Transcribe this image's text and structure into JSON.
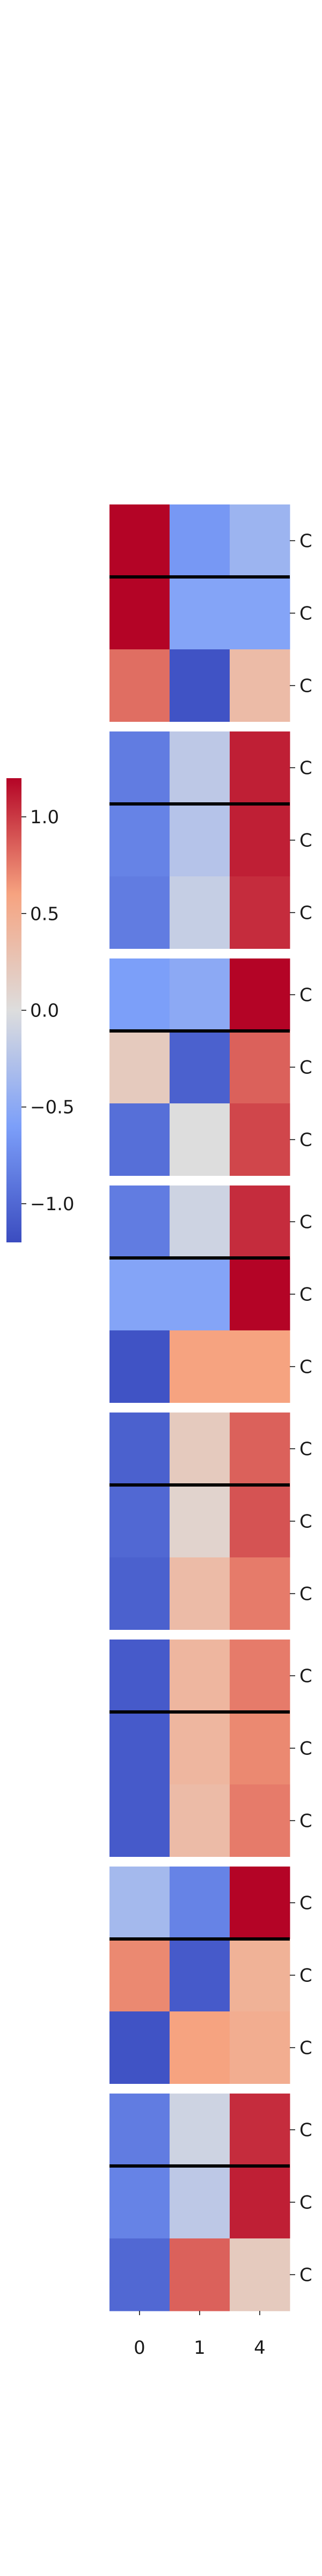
{
  "chart_data": {
    "type": "heatmap",
    "title": "",
    "xlabel": "",
    "ylabel": "",
    "x_categories": [
      "0",
      "1",
      "4"
    ],
    "colormap": "coolwarm",
    "color_range": [
      -1.2,
      1.2
    ],
    "colorbar": {
      "ticks": [
        1.0,
        0.5,
        0.0,
        -0.5,
        -1.0
      ],
      "tick_labels": [
        "1.0",
        "0.5",
        "0.0",
        "−0.5",
        "−1.0"
      ],
      "placement": "left"
    },
    "groups": [
      {
        "row_labels": [
          "C",
          "C",
          "C"
        ],
        "values": [
          [
            1.2,
            -0.65,
            -0.4
          ],
          [
            1.2,
            -0.55,
            -0.55
          ],
          [
            0.8,
            -1.15,
            0.35
          ]
        ]
      },
      {
        "row_labels": [
          "C",
          "C",
          "C"
        ],
        "values": [
          [
            -0.85,
            -0.2,
            1.1
          ],
          [
            -0.8,
            -0.25,
            1.1
          ],
          [
            -0.85,
            -0.15,
            1.05
          ]
        ]
      },
      {
        "row_labels": [
          "C",
          "C",
          "C"
        ],
        "values": [
          [
            -0.6,
            -0.5,
            1.2
          ],
          [
            0.2,
            -1.05,
            0.85
          ],
          [
            -0.95,
            0.0,
            0.95
          ]
        ]
      },
      {
        "row_labels": [
          "C",
          "C",
          "C"
        ],
        "values": [
          [
            -0.85,
            -0.1,
            1.05
          ],
          [
            -0.55,
            -0.55,
            1.2
          ],
          [
            -1.15,
            0.6,
            0.6
          ]
        ]
      },
      {
        "row_labels": [
          "C",
          "C",
          "C"
        ],
        "values": [
          [
            -1.05,
            0.2,
            0.85
          ],
          [
            -1.0,
            0.1,
            0.9
          ],
          [
            -1.05,
            0.35,
            0.75
          ]
        ]
      },
      {
        "row_labels": [
          "C",
          "C",
          "C"
        ],
        "values": [
          [
            -1.1,
            0.4,
            0.75
          ],
          [
            -1.1,
            0.4,
            0.7
          ],
          [
            -1.1,
            0.35,
            0.75
          ]
        ]
      },
      {
        "row_labels": [
          "C",
          "C",
          "C"
        ],
        "values": [
          [
            -0.35,
            -0.8,
            1.2
          ],
          [
            0.7,
            -1.1,
            0.45
          ],
          [
            -1.15,
            0.6,
            0.5
          ]
        ]
      },
      {
        "row_labels": [
          "C",
          "C",
          "C"
        ],
        "values": [
          [
            -0.85,
            -0.1,
            1.05
          ],
          [
            -0.8,
            -0.2,
            1.1
          ],
          [
            -1.0,
            0.85,
            0.2
          ]
        ]
      }
    ]
  }
}
